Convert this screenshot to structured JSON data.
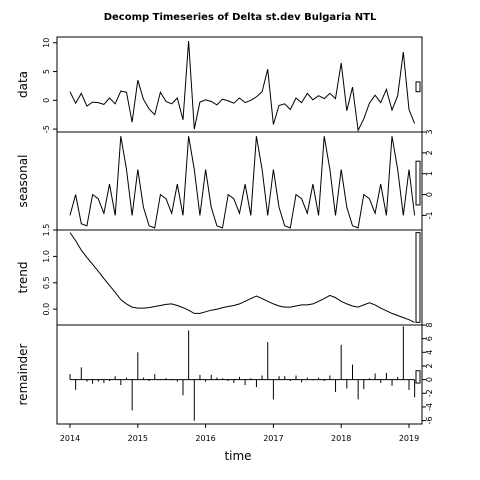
{
  "chart_data": {
    "type": "line",
    "title": "Decomp Timeseries of Delta st.dev Bulgaria NTL",
    "xlabel": "time",
    "xlim": [
      2014.0,
      2019.17
    ],
    "x_ticks": [
      "2014",
      "2015",
      "2016",
      "2017",
      "2018",
      "2019"
    ],
    "x_start": 2014.0,
    "x_step": 0.08333,
    "panels": [
      {
        "name": "data",
        "ylabel": "data",
        "ylim": [
          -5.5,
          11
        ],
        "ticks": [
          "-5",
          "0",
          "5",
          "10"
        ],
        "tick_side": "left",
        "style": "line",
        "scale_bar": [
          1.5,
          3.2
        ],
        "values": [
          1.5,
          -0.5,
          1.2,
          -1.0,
          -0.3,
          -0.4,
          -0.7,
          0.4,
          -0.6,
          1.6,
          1.4,
          -3.8,
          3.5,
          0.2,
          -1.5,
          -2.5,
          1.4,
          -0.2,
          -0.6,
          0.4,
          -3.4,
          10.3,
          -5.0,
          -0.3,
          0.1,
          -0.2,
          -0.8,
          0.2,
          -0.1,
          -0.5,
          0.4,
          -0.4,
          0.0,
          0.6,
          1.5,
          5.4,
          -4.2,
          -0.9,
          -0.6,
          -1.6,
          0.4,
          -0.4,
          1.2,
          0.1,
          0.8,
          0.3,
          1.2,
          0.3,
          6.5,
          -1.8,
          2.3,
          -5.2,
          -3.2,
          -0.5,
          0.9,
          -0.4,
          1.9,
          -1.7,
          0.8,
          8.4,
          -1.6,
          -4.0
        ]
      },
      {
        "name": "seasonal",
        "ylabel": "seasonal",
        "ylim": [
          -1.7,
          3.0
        ],
        "ticks": [
          "-1",
          "0",
          "1",
          "2",
          "3"
        ],
        "tick_side": "right",
        "style": "line",
        "scale_bar": [
          -0.5,
          1.6
        ],
        "values": [
          -1.0,
          0.0,
          -1.4,
          -1.5,
          0.0,
          -0.2,
          -0.9,
          0.5,
          -1.0,
          2.8,
          1.2,
          -1.0,
          1.2,
          -0.6,
          -1.5,
          -1.6,
          0.0,
          -0.2,
          -0.9,
          0.5,
          -1.0,
          2.8,
          1.2,
          -1.0,
          1.2,
          -0.6,
          -1.5,
          -1.6,
          0.0,
          -0.2,
          -0.9,
          0.5,
          -1.0,
          2.8,
          1.2,
          -1.0,
          1.2,
          -0.6,
          -1.5,
          -1.6,
          0.0,
          -0.2,
          -0.9,
          0.5,
          -1.0,
          2.8,
          1.2,
          -1.0,
          1.2,
          -0.6,
          -1.5,
          -1.6,
          0.0,
          -0.2,
          -0.9,
          0.5,
          -1.0,
          2.8,
          1.2,
          -1.0,
          1.2,
          -1.0
        ]
      },
      {
        "name": "trend",
        "ylabel": "trend",
        "ylim": [
          -0.3,
          1.5
        ],
        "ticks": [
          "0.0",
          "0.5",
          "1.0",
          "1.5"
        ],
        "tick_side": "left",
        "style": "line",
        "scale_bar": [
          -0.25,
          1.45
        ],
        "values": [
          1.45,
          1.3,
          1.12,
          0.98,
          0.85,
          0.72,
          0.58,
          0.45,
          0.32,
          0.18,
          0.1,
          0.04,
          0.02,
          0.02,
          0.03,
          0.05,
          0.07,
          0.09,
          0.1,
          0.07,
          0.03,
          -0.02,
          -0.08,
          -0.08,
          -0.05,
          -0.02,
          0.0,
          0.03,
          0.05,
          0.07,
          0.1,
          0.15,
          0.2,
          0.25,
          0.2,
          0.15,
          0.1,
          0.06,
          0.04,
          0.04,
          0.06,
          0.08,
          0.08,
          0.1,
          0.15,
          0.2,
          0.26,
          0.22,
          0.15,
          0.1,
          0.06,
          0.04,
          0.08,
          0.12,
          0.08,
          0.02,
          -0.03,
          -0.08,
          -0.12,
          -0.16,
          -0.2,
          -0.25
        ]
      },
      {
        "name": "remainder",
        "ylabel": "remainder",
        "ylim": [
          -6.5,
          8.0
        ],
        "ticks": [
          "-6",
          "-4",
          "-2",
          "0",
          "2",
          "4",
          "6",
          "8"
        ],
        "tick_side": "right",
        "style": "bars",
        "scale_bar": [
          -0.5,
          1.3
        ],
        "values": [
          0.8,
          -1.5,
          1.8,
          -0.3,
          -0.6,
          -0.3,
          -0.5,
          -0.2,
          0.5,
          -0.8,
          0.3,
          -4.5,
          4.0,
          0.3,
          -0.2,
          0.8,
          0.1,
          0.2,
          -0.1,
          -0.3,
          -2.3,
          7.2,
          -6.0,
          0.7,
          -0.3,
          0.7,
          0.3,
          0.2,
          -0.2,
          -0.5,
          0.4,
          -0.8,
          0.2,
          -1.1,
          0.6,
          5.5,
          -2.9,
          0.5,
          0.5,
          -0.2,
          0.6,
          -0.4,
          0.3,
          -0.1,
          0.3,
          -0.2,
          0.6,
          -1.8,
          5.1,
          -1.3,
          2.2,
          -2.9,
          -1.4,
          0.2,
          0.9,
          -0.5,
          1.0,
          -0.9,
          0.4,
          7.8,
          -1.5,
          -2.6
        ]
      }
    ]
  }
}
